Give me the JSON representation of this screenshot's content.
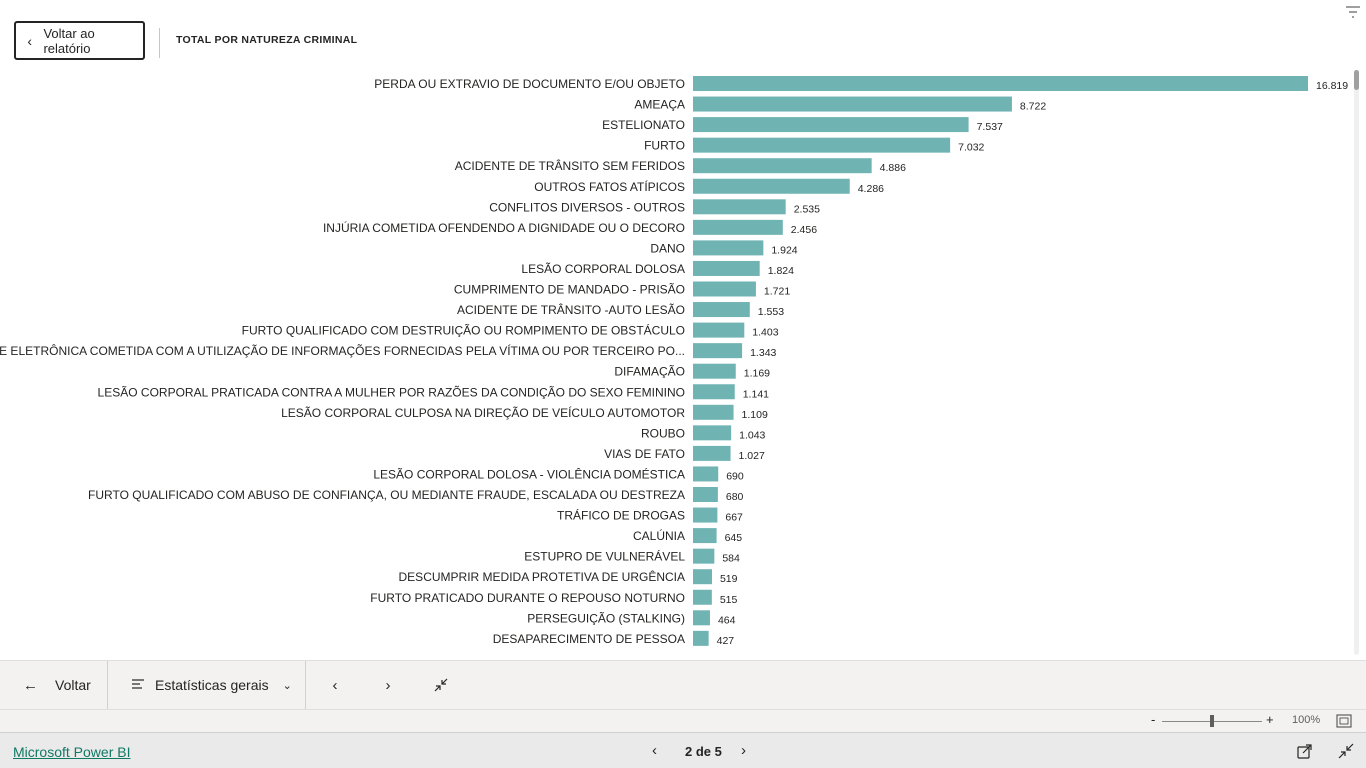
{
  "header": {
    "back_label": "Voltar ao relatório",
    "back_icon": "chevron-left-icon",
    "title": "TOTAL POR NATUREZA CRIMINAL",
    "filter_icon": "filter-icon"
  },
  "chart_data": {
    "type": "bar",
    "orientation": "horizontal",
    "title": "TOTAL POR NATUREZA CRIMINAL",
    "bar_color": "#6fb3b3",
    "categories": [
      "PERDA OU EXTRAVIO DE DOCUMENTO E/OU OBJETO",
      "AMEAÇA",
      "ESTELIONATO",
      "FURTO",
      "ACIDENTE DE TRÂNSITO SEM FERIDOS",
      "OUTROS FATOS ATÍPICOS",
      "CONFLITOS DIVERSOS - OUTROS",
      "INJÚRIA COMETIDA OFENDENDO A DIGNIDADE OU O DECORO",
      "DANO",
      "LESÃO CORPORAL DOLOSA",
      "CUMPRIMENTO DE MANDADO - PRISÃO",
      "ACIDENTE DE TRÂNSITO -AUTO LESÃO",
      "FURTO QUALIFICADO COM DESTRUIÇÃO OU ROMPIMENTO DE OBSTÁCULO",
      "FRAUDE ELETRÔNICA COMETIDA COM A UTILIZAÇÃO DE INFORMAÇÕES FORNECIDAS PELA VÍTIMA OU POR TERCEIRO PO...",
      "DIFAMAÇÃO",
      "LESÃO CORPORAL PRATICADA CONTRA A MULHER POR RAZÕES DA CONDIÇÃO DO SEXO FEMININO",
      "LESÃO CORPORAL CULPOSA NA DIREÇÃO DE VEÍCULO AUTOMOTOR",
      "ROUBO",
      "VIAS DE FATO",
      "LESÃO CORPORAL DOLOSA - VIOLÊNCIA DOMÉSTICA",
      "FURTO QUALIFICADO COM ABUSO DE CONFIANÇA, OU MEDIANTE FRAUDE, ESCALADA OU DESTREZA",
      "TRÁFICO DE DROGAS",
      "CALÚNIA",
      "ESTUPRO DE VULNERÁVEL",
      "DESCUMPRIR MEDIDA PROTETIVA DE URGÊNCIA",
      "FURTO PRATICADO DURANTE O REPOUSO NOTURNO",
      "PERSEGUIÇÃO (STALKING)",
      "DESAPARECIMENTO DE PESSOA"
    ],
    "values": [
      16819,
      8722,
      7537,
      7032,
      4886,
      4286,
      2535,
      2456,
      1924,
      1824,
      1721,
      1553,
      1403,
      1343,
      1169,
      1141,
      1109,
      1043,
      1027,
      690,
      680,
      667,
      645,
      584,
      519,
      515,
      464,
      427
    ],
    "value_labels": [
      "16.819",
      "8.722",
      "7.537",
      "7.032",
      "4.886",
      "4.286",
      "2.535",
      "2.456",
      "1.924",
      "1.824",
      "1.721",
      "1.553",
      "1.403",
      "1.343",
      "1.169",
      "1.141",
      "1.109",
      "1.043",
      "1.027",
      "690",
      "680",
      "667",
      "645",
      "584",
      "519",
      "515",
      "464",
      "427"
    ],
    "xlim": [
      0,
      16819
    ],
    "grid": false,
    "legend": "none"
  },
  "nav": {
    "back_label": "Voltar",
    "back_icon": "arrow-left-icon",
    "pages_label": "Estatísticas gerais",
    "pages_icon": "pages-list-icon",
    "dropdown_icon": "chevron-down-icon",
    "prev_icon": "chevron-left-icon",
    "next_icon": "chevron-right-icon",
    "collapse_icon": "collapse-icon"
  },
  "zoom": {
    "minus": "-",
    "plus": "+",
    "level": "100%",
    "slider_value": 0.5,
    "fit_icon": "fit-to-page-icon"
  },
  "footer": {
    "brand": "Microsoft Power BI",
    "page_label": "2 de 5",
    "share_icon": "share-icon",
    "expand_icon": "collapse-fullscreen-icon"
  }
}
